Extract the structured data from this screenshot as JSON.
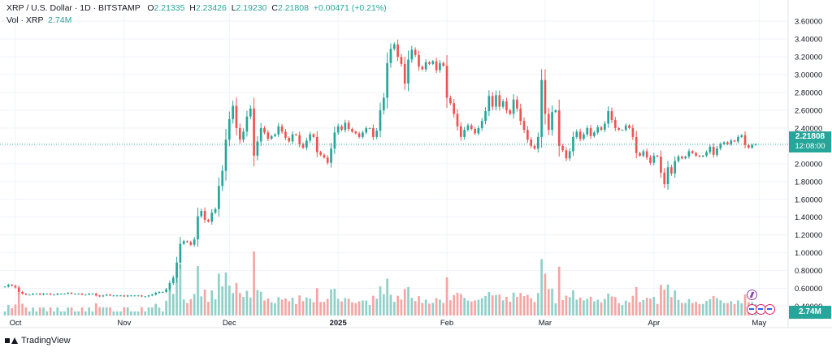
{
  "legend": {
    "symbol": "XRP / U.S. Dollar · 1D · BITSTAMP",
    "open_label": "O",
    "open": "2.21335",
    "high_label": "H",
    "high": "2.23426",
    "low_label": "L",
    "low": "2.19230",
    "close_label": "C",
    "close": "2.21808",
    "change": "+0.00471 (+0.21%)",
    "vol_label": "Vol · XRP",
    "vol_value": "2.74M"
  },
  "badges": {
    "last_price": "2.21808",
    "countdown": "12:08:00",
    "last_volume": "2.74M"
  },
  "footer": {
    "brand": "TradingView"
  },
  "colors": {
    "up": "#26a69a",
    "down": "#ef5350",
    "up_volume": "#8fd0c9",
    "down_volume": "#f5a5a3"
  },
  "chart_data": {
    "type": "candlestick",
    "ylim": [
      0.2,
      3.7
    ],
    "yticks": [
      "3.60000",
      "3.40000",
      "3.20000",
      "3.00000",
      "2.80000",
      "2.60000",
      "2.40000",
      "2.20000",
      "2.00000",
      "1.80000",
      "1.60000",
      "1.40000",
      "1.20000",
      "1.00000",
      "0.80000",
      "0.60000",
      "0.40000"
    ],
    "xticks": [
      {
        "label": "Oct",
        "bar": 3
      },
      {
        "label": "Nov",
        "bar": 34
      },
      {
        "label": "Dec",
        "bar": 64
      },
      {
        "label": "2025",
        "bar": 95
      },
      {
        "label": "Feb",
        "bar": 126
      },
      {
        "label": "Mar",
        "bar": 154
      },
      {
        "label": "Apr",
        "bar": 185
      },
      {
        "label": "May",
        "bar": 215
      }
    ],
    "current_price": 2.21808,
    "closes": [
      0.62,
      0.64,
      0.63,
      0.61,
      0.56,
      0.54,
      0.53,
      0.53,
      0.54,
      0.54,
      0.53,
      0.54,
      0.54,
      0.53,
      0.53,
      0.54,
      0.54,
      0.54,
      0.55,
      0.54,
      0.54,
      0.54,
      0.53,
      0.53,
      0.54,
      0.54,
      0.52,
      0.51,
      0.52,
      0.53,
      0.52,
      0.52,
      0.52,
      0.52,
      0.51,
      0.52,
      0.52,
      0.52,
      0.52,
      0.51,
      0.51,
      0.52,
      0.53,
      0.55,
      0.56,
      0.56,
      0.59,
      0.66,
      0.72,
      0.89,
      1.1,
      1.13,
      1.12,
      1.09,
      1.15,
      1.41,
      1.47,
      1.37,
      1.35,
      1.45,
      1.49,
      1.75,
      1.92,
      2.27,
      2.5,
      2.65,
      2.4,
      2.27,
      2.36,
      2.53,
      2.62,
      2.09,
      2.25,
      2.4,
      2.35,
      2.28,
      2.31,
      2.33,
      2.42,
      2.36,
      2.29,
      2.25,
      2.33,
      2.32,
      2.22,
      2.18,
      2.26,
      2.33,
      2.3,
      2.13,
      2.1,
      2.07,
      2.01,
      2.17,
      2.35,
      2.42,
      2.38,
      2.46,
      2.39,
      2.36,
      2.34,
      2.3,
      2.35,
      2.4,
      2.4,
      2.3,
      2.37,
      2.6,
      2.74,
      3.13,
      3.29,
      3.34,
      3.2,
      3.12,
      2.9,
      3.17,
      3.28,
      3.22,
      3.09,
      3.06,
      3.14,
      3.12,
      3.15,
      3.05,
      3.13,
      3.1,
      2.74,
      2.68,
      2.56,
      2.42,
      2.3,
      2.38,
      2.43,
      2.39,
      2.34,
      2.4,
      2.48,
      2.59,
      2.76,
      2.64,
      2.77,
      2.64,
      2.7,
      2.6,
      2.56,
      2.72,
      2.62,
      2.48,
      2.38,
      2.27,
      2.2,
      2.17,
      2.3,
      2.94,
      2.56,
      2.38,
      2.58,
      2.6,
      2.2,
      2.15,
      2.06,
      2.14,
      2.3,
      2.36,
      2.28,
      2.33,
      2.4,
      2.31,
      2.35,
      2.41,
      2.38,
      2.45,
      2.59,
      2.49,
      2.4,
      2.38,
      2.38,
      2.43,
      2.4,
      2.3,
      2.12,
      2.09,
      2.14,
      2.07,
      2.01,
      2.09,
      2.08,
      1.9,
      1.77,
      1.96,
      1.89,
      2.03,
      2.08,
      2.06,
      2.08,
      2.14,
      2.12,
      2.09,
      2.08,
      2.09,
      2.13,
      2.19,
      2.1,
      2.17,
      2.22,
      2.24,
      2.22,
      2.26,
      2.25,
      2.3,
      2.32,
      2.21,
      2.18,
      2.21,
      2.22
    ]
  }
}
